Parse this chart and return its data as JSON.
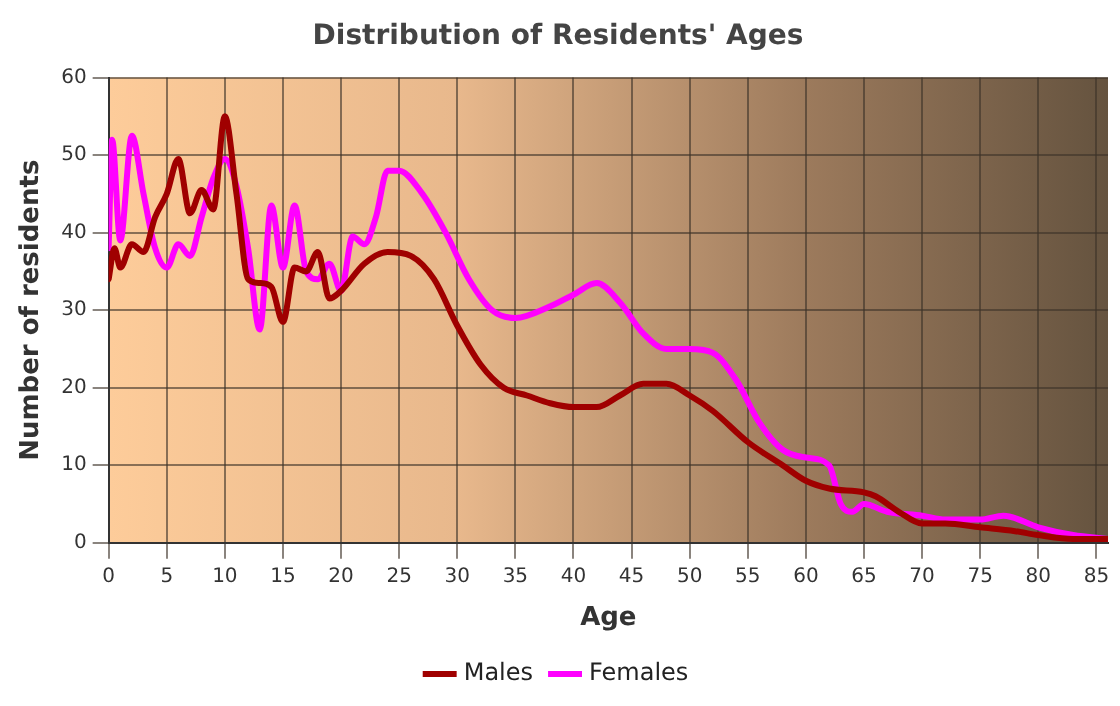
{
  "chart_data": {
    "type": "line",
    "title": "Distribution of Residents' Ages",
    "xlabel": "Age",
    "ylabel": "Number of residents",
    "xlim": [
      0,
      86
    ],
    "xticks": [
      0,
      5,
      10,
      15,
      20,
      25,
      30,
      35,
      40,
      45,
      50,
      55,
      60,
      65,
      70,
      75,
      80,
      85
    ],
    "ylim": [
      0,
      60
    ],
    "yticks": [
      0,
      10,
      20,
      30,
      40,
      50,
      60
    ],
    "grid": true,
    "legend": "bottom",
    "marker": "none",
    "line_style": "solid",
    "series": [
      {
        "name": "Males",
        "color": "#a00000",
        "x": [
          0,
          0.5,
          1,
          2,
          3,
          4,
          5,
          6,
          7,
          8,
          9,
          10,
          11,
          12,
          13,
          14,
          15,
          16,
          17,
          18,
          19,
          20,
          22,
          24,
          26,
          28,
          30,
          32,
          34,
          36,
          38,
          40,
          42,
          44,
          46,
          48,
          50,
          52,
          55,
          58,
          60,
          62,
          65,
          66,
          68,
          70,
          72,
          75,
          78,
          80,
          83,
          86
        ],
        "values": [
          34,
          38,
          35.5,
          38.5,
          37.5,
          42,
          45,
          49.5,
          42.5,
          45.5,
          43,
          55,
          45,
          34,
          33.5,
          33,
          28.5,
          35.5,
          35,
          37.5,
          31.5,
          32.5,
          36,
          37.5,
          37,
          34,
          28,
          23,
          20,
          19,
          18,
          17.5,
          17.5,
          19,
          20.5,
          20.5,
          19,
          17,
          13,
          10,
          8,
          7,
          6.5,
          6,
          4,
          2.5,
          2.5,
          2,
          1.5,
          1,
          0.5,
          0.5
        ]
      },
      {
        "name": "Females",
        "color": "#ff00ff",
        "x": [
          0,
          0.3,
          1,
          2,
          3,
          4,
          5,
          6,
          7,
          8,
          9,
          10,
          11,
          12,
          13,
          14,
          15,
          16,
          17,
          18,
          19,
          20,
          21,
          22,
          23,
          24,
          25,
          27,
          29,
          31,
          33,
          35,
          38,
          40,
          42,
          44,
          46,
          48,
          50,
          52,
          54,
          56,
          58,
          60,
          62,
          63,
          64,
          65,
          67,
          70,
          72,
          75,
          77,
          80,
          83,
          86
        ],
        "values": [
          38,
          52,
          39,
          52.5,
          45,
          38,
          35.5,
          38.5,
          37,
          42,
          47,
          49.5,
          46,
          38,
          27.5,
          43.5,
          35.5,
          43.5,
          35,
          34,
          36,
          32.5,
          39.5,
          38.5,
          42,
          48,
          48,
          45,
          40,
          34,
          30,
          29,
          30.5,
          32,
          33.5,
          31,
          27,
          25,
          25,
          24.5,
          21,
          15.5,
          12,
          11,
          10,
          5,
          4,
          5,
          4,
          3.5,
          3,
          3,
          3.5,
          2,
          1,
          0.5
        ]
      }
    ]
  }
}
